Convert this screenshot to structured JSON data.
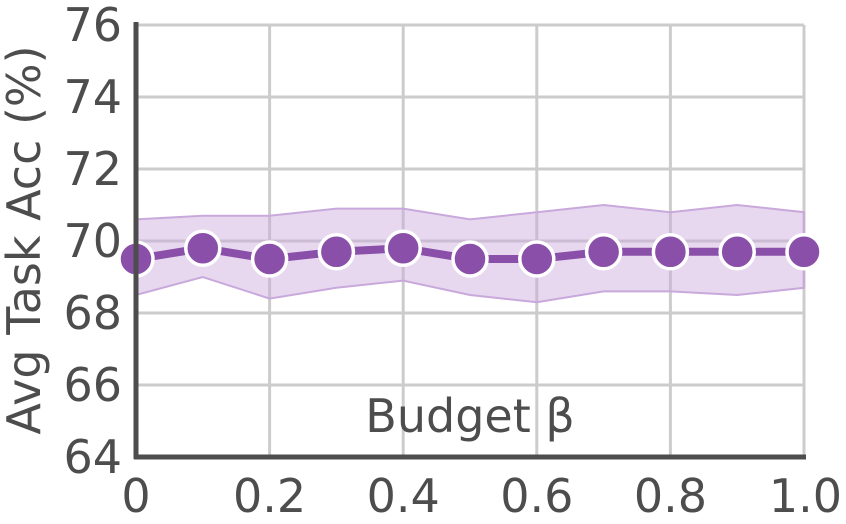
{
  "chart_data": {
    "type": "line",
    "xlabel": "Budget β",
    "ylabel": "Avg Task Acc (%)",
    "xlim": [
      0,
      1.0
    ],
    "ylim": [
      64,
      76
    ],
    "x_ticks": [
      "0",
      "0.2",
      "0.4",
      "0.6",
      "0.8",
      "1.0"
    ],
    "x_tick_values": [
      0,
      0.2,
      0.4,
      0.6,
      0.8,
      1.0
    ],
    "y_ticks": [
      "64",
      "66",
      "68",
      "70",
      "72",
      "74",
      "76"
    ],
    "y_tick_values": [
      64,
      66,
      68,
      70,
      72,
      74,
      76
    ],
    "grid": true,
    "color": "#8a4fa8",
    "band_color": "#c9a9dc",
    "series": [
      {
        "x": [
          0,
          0.1,
          0.2,
          0.3,
          0.4,
          0.5,
          0.6,
          0.7,
          0.8,
          0.9,
          1.0
        ],
        "values": [
          69.5,
          69.8,
          69.5,
          69.7,
          69.8,
          69.5,
          69.5,
          69.7,
          69.7,
          69.7,
          69.7
        ],
        "lower": [
          68.5,
          69.0,
          68.4,
          68.7,
          68.9,
          68.5,
          68.3,
          68.6,
          68.6,
          68.5,
          68.7
        ],
        "upper": [
          70.6,
          70.7,
          70.7,
          70.9,
          70.9,
          70.6,
          70.8,
          71.0,
          70.8,
          71.0,
          70.8
        ]
      }
    ]
  }
}
